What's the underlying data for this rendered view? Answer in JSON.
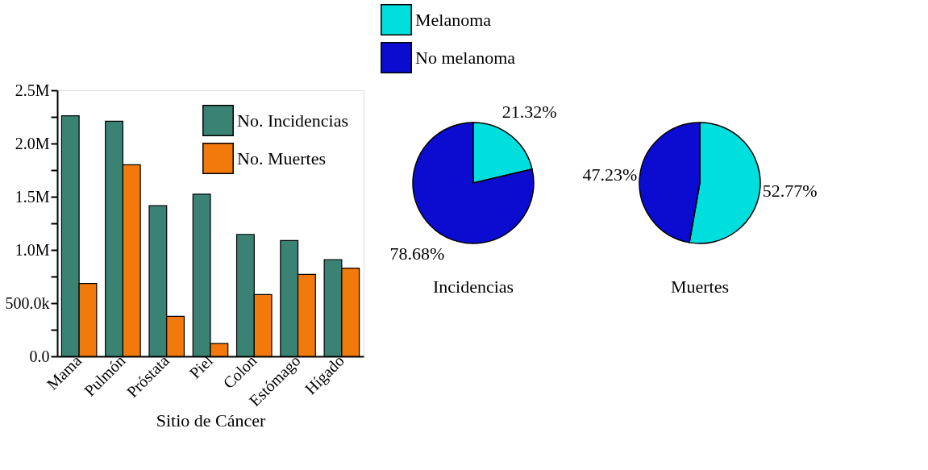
{
  "chart_data": [
    {
      "type": "bar",
      "xlabel": "Sitio de Cáncer",
      "categories": [
        "Mama",
        "Pulmón",
        "Próstata",
        "Piel",
        "Colon",
        "Estómago",
        "Hígado"
      ],
      "series": [
        {
          "name": "No. Incidencias",
          "color": "#3a8274",
          "values": [
            2260000,
            2210000,
            1415000,
            1524000,
            1146000,
            1088000,
            909000
          ]
        },
        {
          "name": "No. Muertes",
          "color": "#f27a0c",
          "values": [
            684000,
            1800000,
            376000,
            121000,
            580000,
            770000,
            828000
          ]
        }
      ],
      "ylim": [
        0,
        2500000
      ],
      "yticks": [
        {
          "value": 0,
          "label": "0.0"
        },
        {
          "value": 250000,
          "label": null
        },
        {
          "value": 500000,
          "label": "500.0k"
        },
        {
          "value": 750000,
          "label": null
        },
        {
          "value": 1000000,
          "label": "1.0M"
        },
        {
          "value": 1250000,
          "label": null
        },
        {
          "value": 1500000,
          "label": "1.5M"
        },
        {
          "value": 1750000,
          "label": null
        },
        {
          "value": 2000000,
          "label": "2.0M"
        },
        {
          "value": 2250000,
          "label": null
        },
        {
          "value": 2500000,
          "label": "2.5M"
        }
      ],
      "legend": "top right",
      "grid": false
    },
    {
      "type": "pie",
      "title": "Incidencias",
      "categories": [
        "Melanoma",
        "No melanoma"
      ],
      "values": [
        21.32,
        78.68
      ],
      "colors": [
        "#00dede",
        "#0c0cd0"
      ],
      "value_labels": [
        "21.32%",
        "78.68%"
      ],
      "legend": "top"
    },
    {
      "type": "pie",
      "title": "Muertes",
      "categories": [
        null,
        null
      ],
      "values": [
        52.77,
        47.23
      ],
      "colors": [
        "#00dede",
        "#0c0cd0"
      ],
      "value_labels": [
        "52.77%",
        "47.23%"
      ]
    }
  ]
}
